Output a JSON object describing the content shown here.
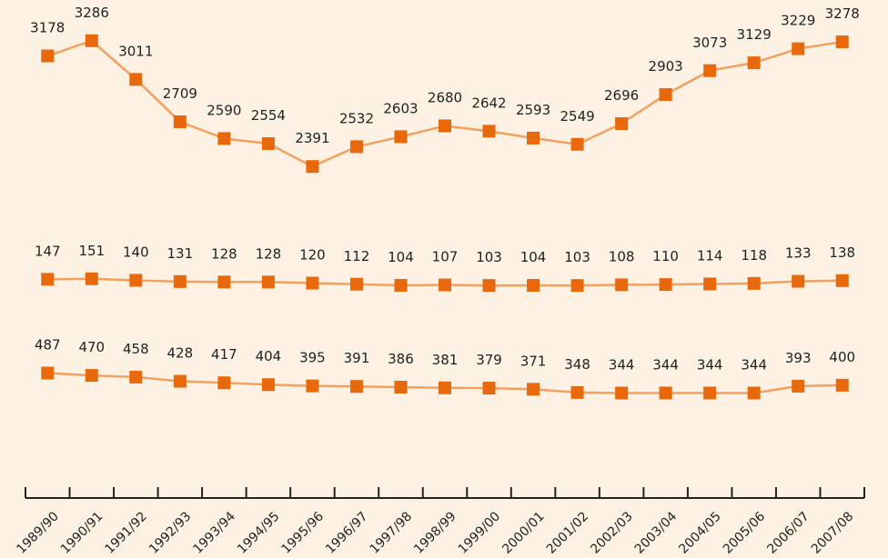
{
  "chart_data": [
    {
      "type": "line",
      "color": "#e8680c",
      "line_color": "#f2a060",
      "values": [
        3178,
        3286,
        3011,
        2709,
        2590,
        2554,
        2391,
        2532,
        2603,
        2680,
        2642,
        2593,
        2549,
        2696,
        2903,
        3073,
        3129,
        3229,
        3278
      ],
      "ylim": [
        2250,
        3550
      ]
    },
    {
      "type": "line",
      "color": "#e8680c",
      "line_color": "#f2a060",
      "values": [
        147,
        151,
        140,
        131,
        128,
        128,
        120,
        112,
        104,
        107,
        103,
        104,
        103,
        108,
        110,
        114,
        118,
        133,
        138
      ],
      "ylim": [
        0,
        650
      ]
    },
    {
      "type": "line",
      "color": "#e8680c",
      "line_color": "#f2a060",
      "categories": [
        "1989/90",
        "1990/91",
        "1991/92",
        "1992/93",
        "1993/94",
        "1994/95",
        "1995/96",
        "1996/97",
        "1997/98",
        "1998/99",
        "1999/00",
        "2000/01",
        "2001/02",
        "2002/03",
        "2003/04",
        "2004/05",
        "2005/06",
        "2006/07",
        "2007/08"
      ],
      "values": [
        487,
        470,
        458,
        428,
        417,
        404,
        395,
        391,
        386,
        381,
        379,
        371,
        348,
        344,
        344,
        344,
        344,
        393,
        400
      ],
      "ylim": [
        230,
        750
      ]
    }
  ]
}
